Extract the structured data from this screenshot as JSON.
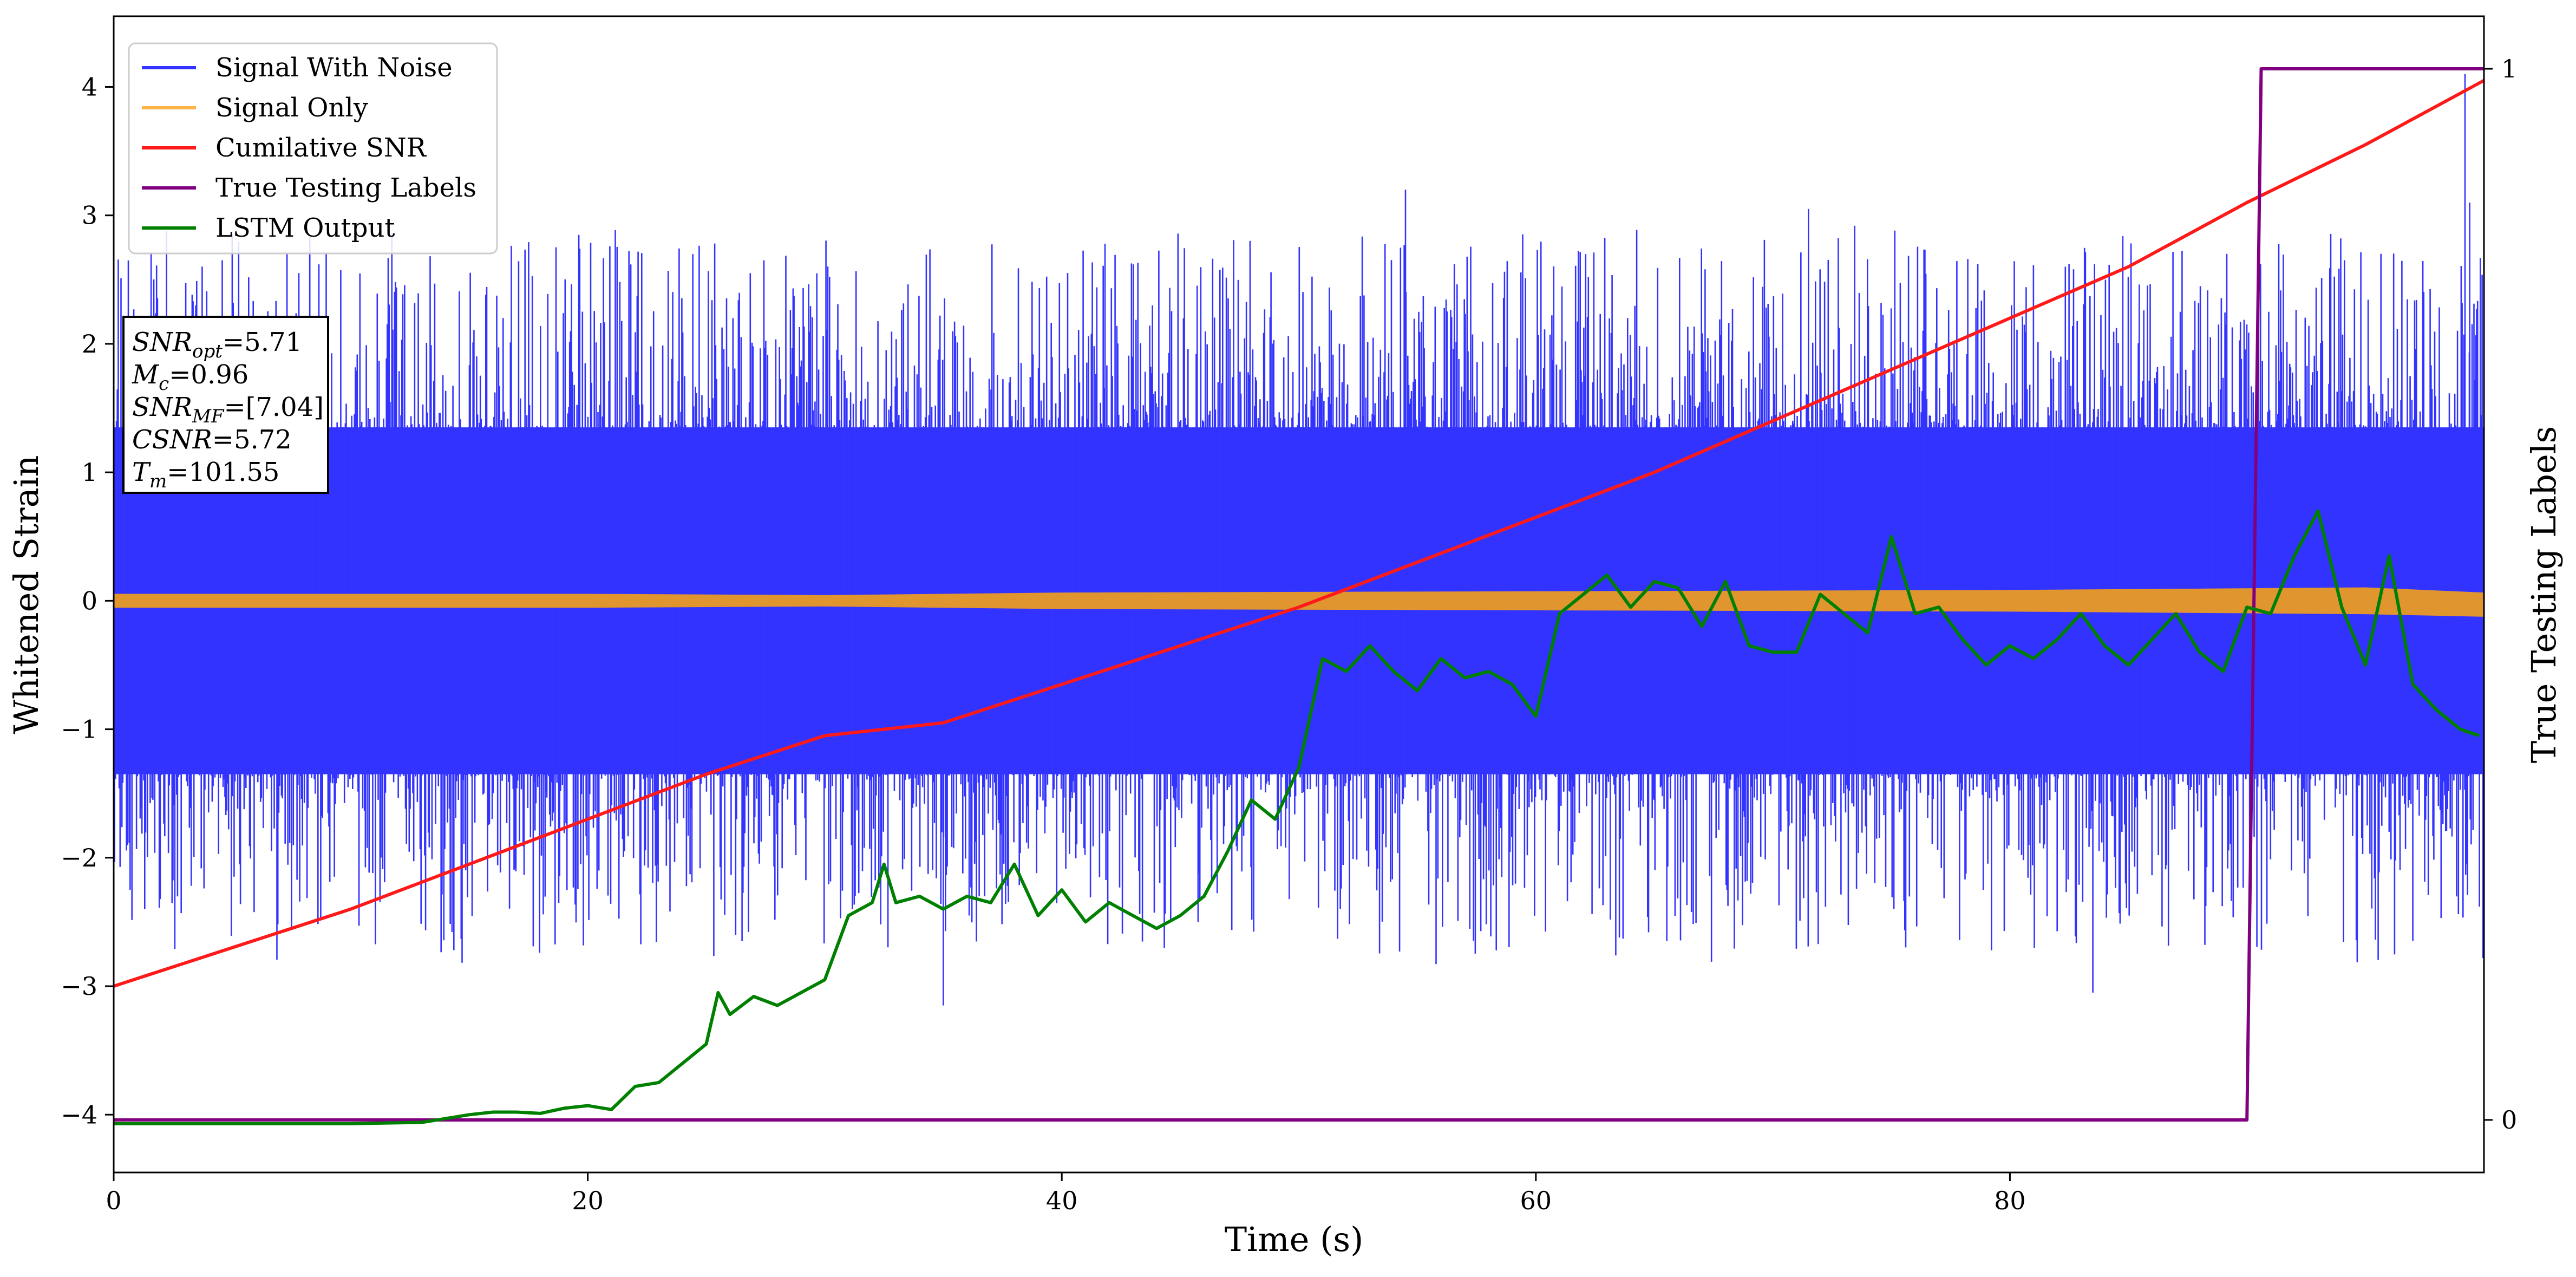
{
  "chart_data": {
    "type": "line",
    "xlabel": "Time (s)",
    "ylabel_left": "Whitened Strain",
    "ylabel_right": "True Testing Labels",
    "xlim": [
      0,
      100
    ],
    "ylim_left": [
      -4.45,
      4.55
    ],
    "ylim_right": [
      -0.05,
      1.05
    ],
    "x_ticks": [
      0,
      20,
      40,
      60,
      80
    ],
    "y_ticks_left": [
      -4,
      -3,
      -2,
      -1,
      0,
      1,
      2,
      3,
      4
    ],
    "y_ticks_right": [
      0,
      1
    ],
    "grid": false,
    "legend_position": "upper-left",
    "legend": [
      {
        "label": "Signal With Noise",
        "color": "#3333ff"
      },
      {
        "label": "Signal Only",
        "color": "#ffb347"
      },
      {
        "label": "Cumilative SNR",
        "color": "#ff1a1a"
      },
      {
        "label": "True Testing Labels",
        "color": "#800080"
      },
      {
        "label": "LSTM Output",
        "color": "#008000"
      }
    ],
    "annotation_lines": [
      {
        "label": "SNR",
        "sub": "opt",
        "value": "=5.71"
      },
      {
        "label": "M",
        "sub": "c",
        "value": "=0.96"
      },
      {
        "label": "SNR",
        "sub": "MF",
        "value": "=[7.04]"
      },
      {
        "label": "CSNR",
        "sub": "",
        "value": "=5.72"
      },
      {
        "label": "T",
        "sub": "m",
        "value": "=101.55"
      }
    ],
    "series": [
      {
        "name": "Signal With Noise",
        "axis": "left",
        "style": "noise",
        "color": "#3333ff",
        "x_range": [
          0,
          100
        ],
        "band_upper": 1.35,
        "band_lower": -1.35,
        "peak_max": 4.1,
        "peak_min": -3.2
      },
      {
        "name": "Signal Only",
        "axis": "left",
        "style": "band",
        "color": "#e0952f",
        "x": [
          0,
          20,
          30,
          40,
          60,
          80,
          95,
          100
        ],
        "upper": [
          0.05,
          0.05,
          0.04,
          0.06,
          0.07,
          0.08,
          0.1,
          0.06
        ],
        "lower": [
          -0.05,
          -0.05,
          -0.04,
          -0.06,
          -0.07,
          -0.08,
          -0.1,
          -0.12
        ]
      },
      {
        "name": "Cumilative SNR",
        "axis": "left",
        "style": "line",
        "color": "#ff1a1a",
        "x": [
          0,
          5,
          10,
          15,
          20,
          25,
          30,
          35,
          40,
          45,
          50,
          55,
          60,
          65,
          70,
          75,
          80,
          85,
          90,
          95,
          100
        ],
        "y": [
          -3.0,
          -2.7,
          -2.4,
          -2.05,
          -1.7,
          -1.35,
          -1.05,
          -0.95,
          -0.65,
          -0.35,
          -0.05,
          0.3,
          0.65,
          1.0,
          1.4,
          1.8,
          2.2,
          2.6,
          3.1,
          3.55,
          4.05
        ]
      },
      {
        "name": "True Testing Labels",
        "axis": "right",
        "style": "line",
        "color": "#800080",
        "x": [
          0,
          90,
          90.6,
          100
        ],
        "y": [
          0,
          0,
          1,
          1
        ]
      },
      {
        "name": "LSTM Output",
        "axis": "left",
        "style": "line",
        "color": "#008000",
        "x": [
          0,
          10,
          13,
          14,
          15,
          16,
          17,
          18,
          19,
          20,
          21,
          22,
          23,
          24,
          25,
          25.5,
          26,
          27,
          28,
          29,
          30,
          31,
          32,
          32.5,
          33,
          34,
          35,
          36,
          37,
          38,
          39,
          40,
          41,
          42,
          43,
          44,
          45,
          46,
          47,
          48,
          49,
          50,
          51,
          52,
          53,
          54,
          55,
          56,
          57,
          58,
          59,
          60,
          61,
          62,
          63,
          64,
          65,
          66,
          67,
          68,
          69,
          70,
          71,
          72,
          73,
          74,
          75,
          76,
          77,
          78,
          79,
          80,
          81,
          82,
          83,
          84,
          85,
          86,
          87,
          88,
          89,
          90,
          91,
          92,
          93,
          94,
          95,
          96,
          97,
          98,
          99,
          99.8
        ],
        "y": [
          -4.07,
          -4.07,
          -4.06,
          -4.03,
          -4.0,
          -3.98,
          -3.98,
          -3.99,
          -3.95,
          -3.93,
          -3.96,
          -3.78,
          -3.75,
          -3.6,
          -3.45,
          -3.05,
          -3.22,
          -3.08,
          -3.15,
          -3.05,
          -2.95,
          -2.45,
          -2.35,
          -2.05,
          -2.35,
          -2.3,
          -2.4,
          -2.3,
          -2.35,
          -2.05,
          -2.45,
          -2.25,
          -2.5,
          -2.35,
          -2.45,
          -2.55,
          -2.45,
          -2.3,
          -1.95,
          -1.55,
          -1.7,
          -1.3,
          -0.45,
          -0.55,
          -0.35,
          -0.55,
          -0.7,
          -0.45,
          -0.6,
          -0.55,
          -0.65,
          -0.9,
          -0.1,
          0.05,
          0.2,
          -0.05,
          0.15,
          0.1,
          -0.2,
          0.15,
          -0.35,
          -0.4,
          -0.4,
          0.05,
          -0.1,
          -0.25,
          0.5,
          -0.1,
          -0.05,
          -0.3,
          -0.5,
          -0.35,
          -0.45,
          -0.3,
          -0.1,
          -0.35,
          -0.5,
          -0.3,
          -0.1,
          -0.4,
          -0.55,
          -0.05,
          -0.1,
          0.35,
          0.7,
          -0.05,
          -0.5,
          0.35,
          -0.65,
          -0.85,
          -1.0,
          -1.05
        ]
      }
    ]
  }
}
